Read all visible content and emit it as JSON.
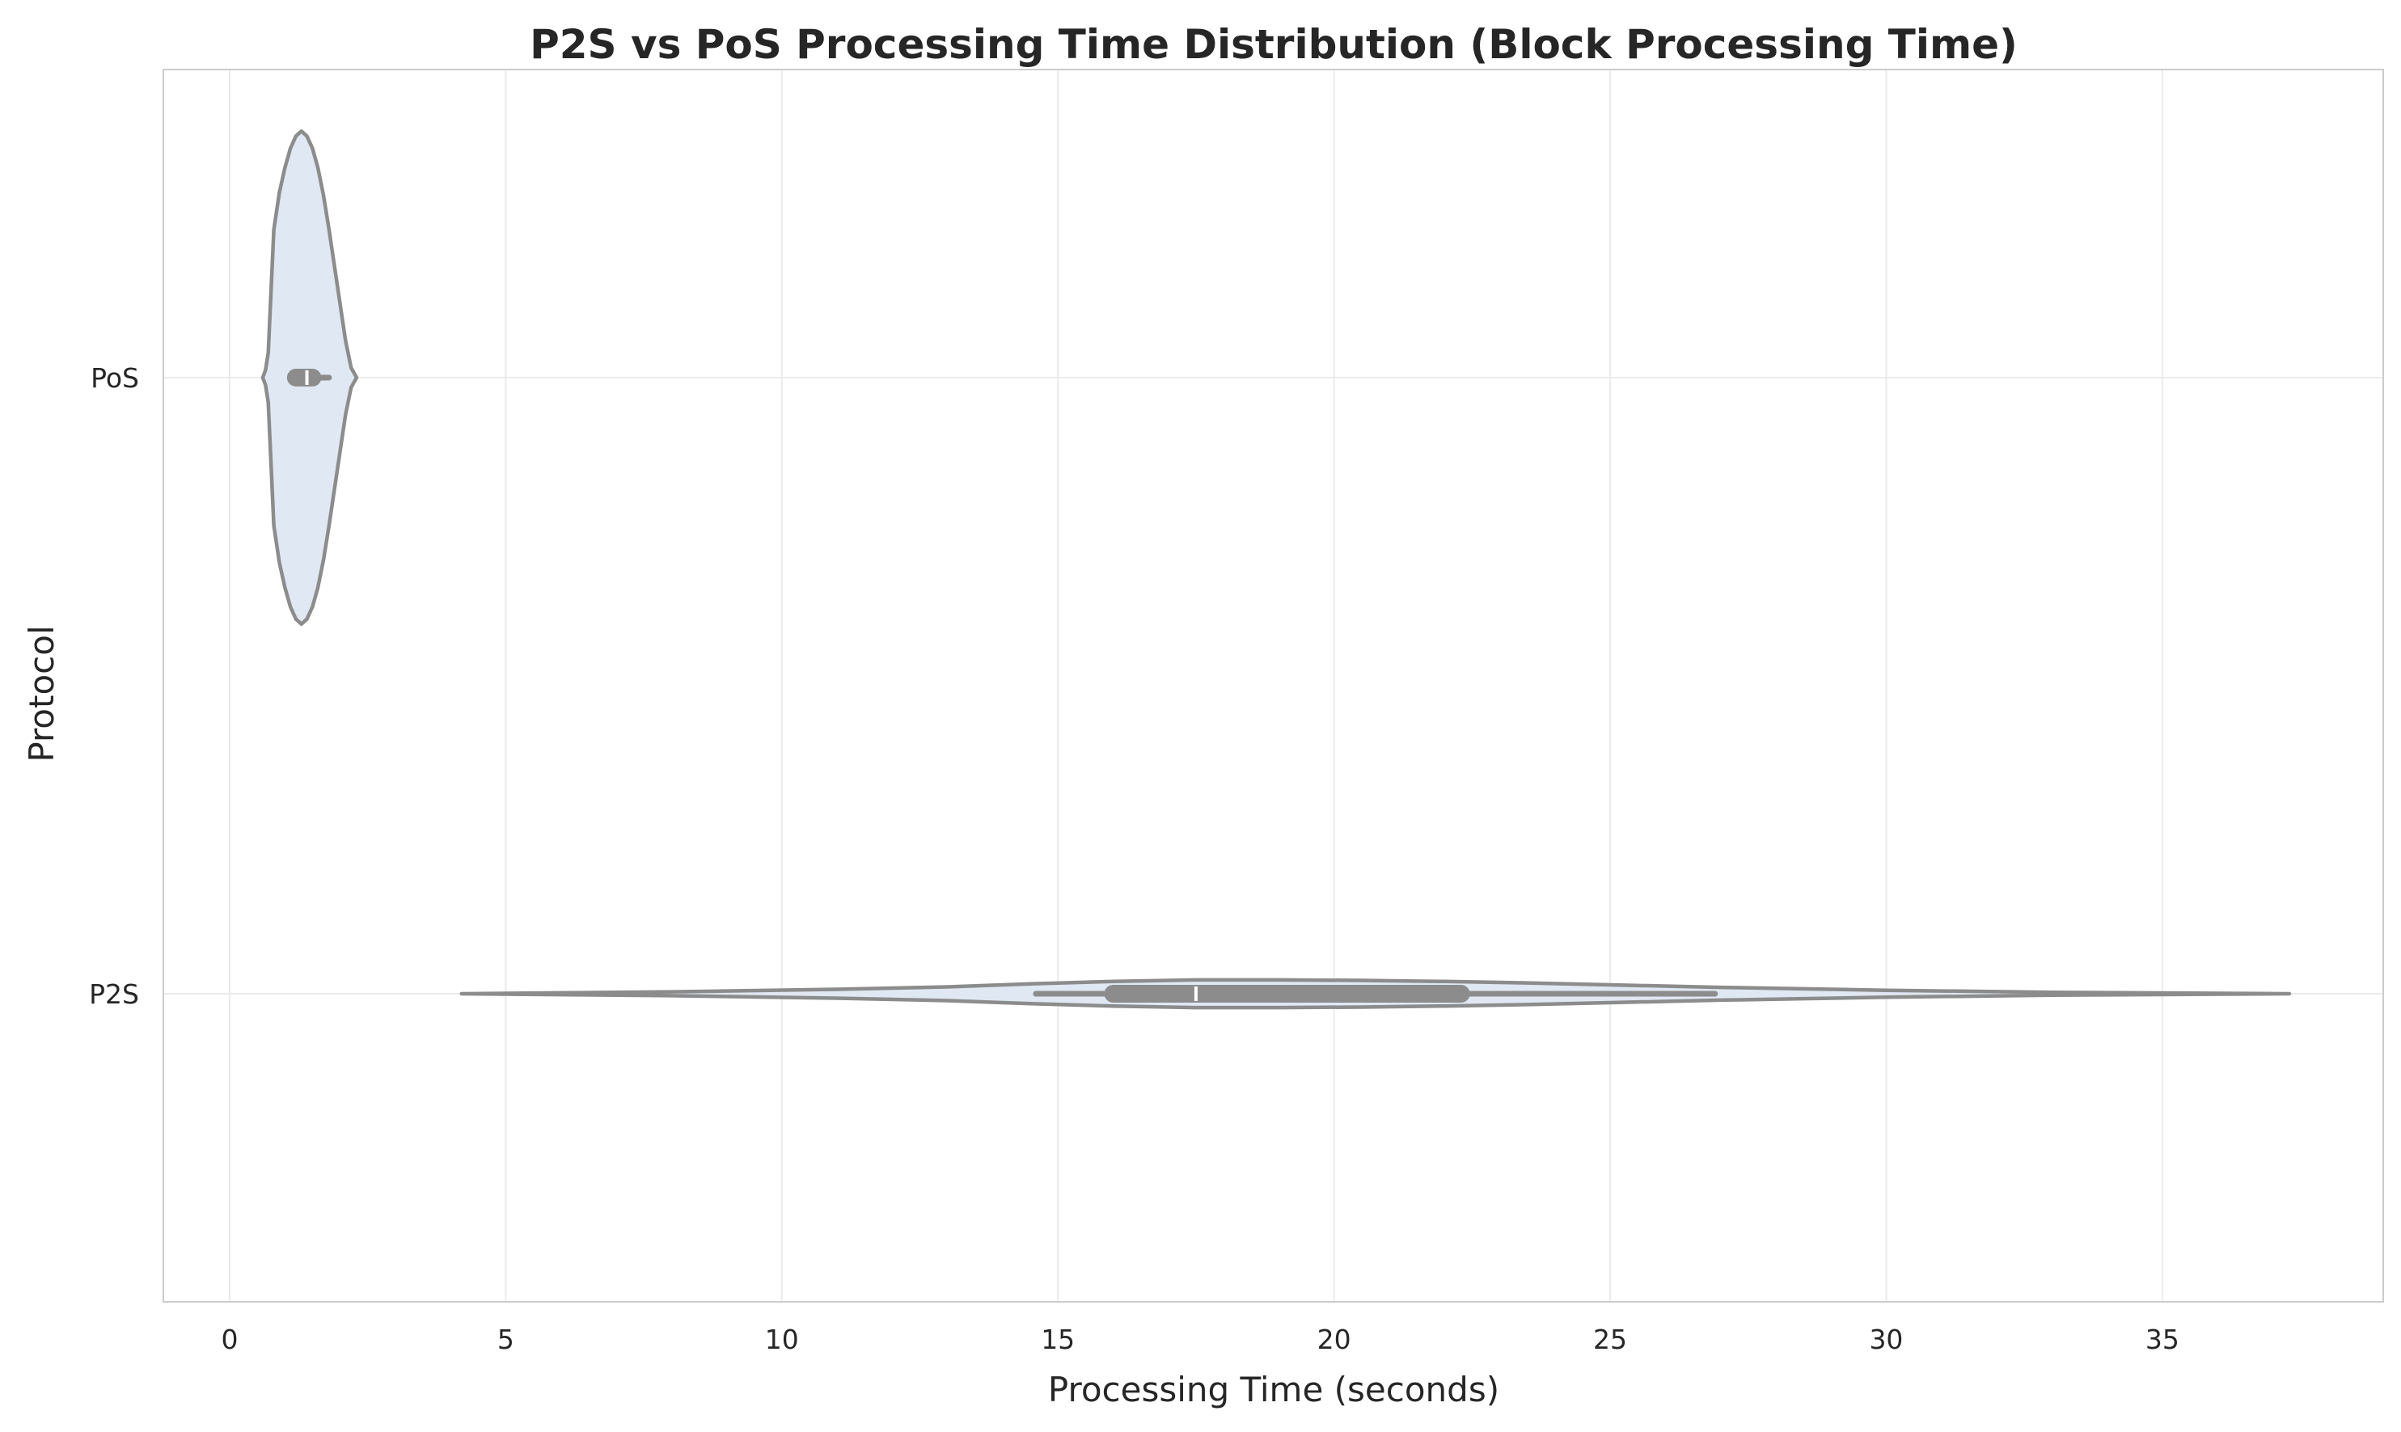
{
  "chart_data": {
    "type": "violin",
    "orientation": "horizontal",
    "title": "P2S vs PoS Processing Time Distribution (Block Processing Time)",
    "xlabel": "Processing Time (seconds)",
    "ylabel": "Protocol",
    "xlim": [
      -1.2,
      39
    ],
    "x_ticks": [
      0,
      5,
      10,
      15,
      20,
      25,
      30,
      35
    ],
    "categories": [
      "PoS",
      "P2S"
    ],
    "grid": true,
    "colors": {
      "fill": "#dfe8f3",
      "edge": "#8c8c8c",
      "grid": "#ebebeb",
      "frame": "#cccccc",
      "median": "#ffffff"
    },
    "series": [
      {
        "name": "PoS",
        "min": 0.6,
        "max": 2.3,
        "q1": 1.2,
        "median": 1.4,
        "q3": 1.5,
        "whisker_low": 1.1,
        "whisker_high": 1.8,
        "density_profile": [
          [
            0.6,
            0.0
          ],
          [
            0.65,
            0.03
          ],
          [
            0.7,
            0.1
          ],
          [
            0.8,
            0.6
          ],
          [
            0.9,
            0.75
          ],
          [
            1.0,
            0.85
          ],
          [
            1.1,
            0.93
          ],
          [
            1.2,
            0.98
          ],
          [
            1.3,
            1.0
          ],
          [
            1.4,
            0.98
          ],
          [
            1.5,
            0.93
          ],
          [
            1.6,
            0.85
          ],
          [
            1.7,
            0.74
          ],
          [
            1.8,
            0.6
          ],
          [
            1.9,
            0.45
          ],
          [
            2.0,
            0.3
          ],
          [
            2.1,
            0.15
          ],
          [
            2.2,
            0.04
          ],
          [
            2.3,
            0.0
          ]
        ]
      },
      {
        "name": "P2S",
        "min": 4.2,
        "max": 37.3,
        "q1": 16.0,
        "median": 17.5,
        "q3": 22.3,
        "whisker_low": 14.6,
        "whisker_high": 26.9,
        "density_profile": [
          [
            4.2,
            0.0
          ],
          [
            8.0,
            0.008
          ],
          [
            11.0,
            0.018
          ],
          [
            13.0,
            0.028
          ],
          [
            14.5,
            0.04
          ],
          [
            16.0,
            0.05
          ],
          [
            17.5,
            0.056
          ],
          [
            19.0,
            0.056
          ],
          [
            20.5,
            0.054
          ],
          [
            22.0,
            0.05
          ],
          [
            23.5,
            0.044
          ],
          [
            25.0,
            0.036
          ],
          [
            27.0,
            0.026
          ],
          [
            30.0,
            0.014
          ],
          [
            33.0,
            0.006
          ],
          [
            37.3,
            0.0
          ]
        ]
      }
    ]
  }
}
